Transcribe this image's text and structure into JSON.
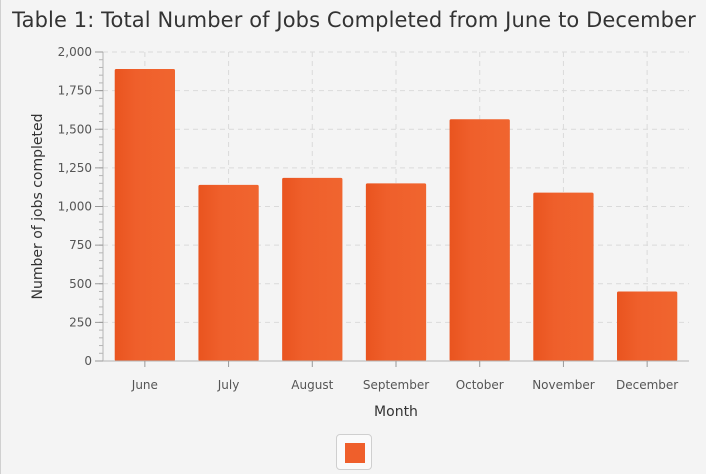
{
  "chart_data": {
    "type": "bar",
    "title": "Table 1: Total Number of Jobs Completed from June to December",
    "xlabel": "Month",
    "ylabel": "Number of jobs completed",
    "categories": [
      "June",
      "July",
      "August",
      "September",
      "October",
      "November",
      "December"
    ],
    "values": [
      1890,
      1140,
      1185,
      1150,
      1565,
      1090,
      450
    ],
    "ylim": [
      0,
      2000
    ],
    "yticks": [
      {
        "value": 0,
        "label": "0"
      },
      {
        "value": 250,
        "label": "250"
      },
      {
        "value": 500,
        "label": "500"
      },
      {
        "value": 750,
        "label": "750"
      },
      {
        "value": 1000,
        "label": "1,000"
      },
      {
        "value": 1250,
        "label": "1,250"
      },
      {
        "value": 1500,
        "label": "1,500"
      },
      {
        "value": 1750,
        "label": "1,750"
      },
      {
        "value": 2000,
        "label": "2,000"
      }
    ],
    "grid": true,
    "bar_color": "#ef5f2b",
    "legend_position": "bottom-center"
  }
}
